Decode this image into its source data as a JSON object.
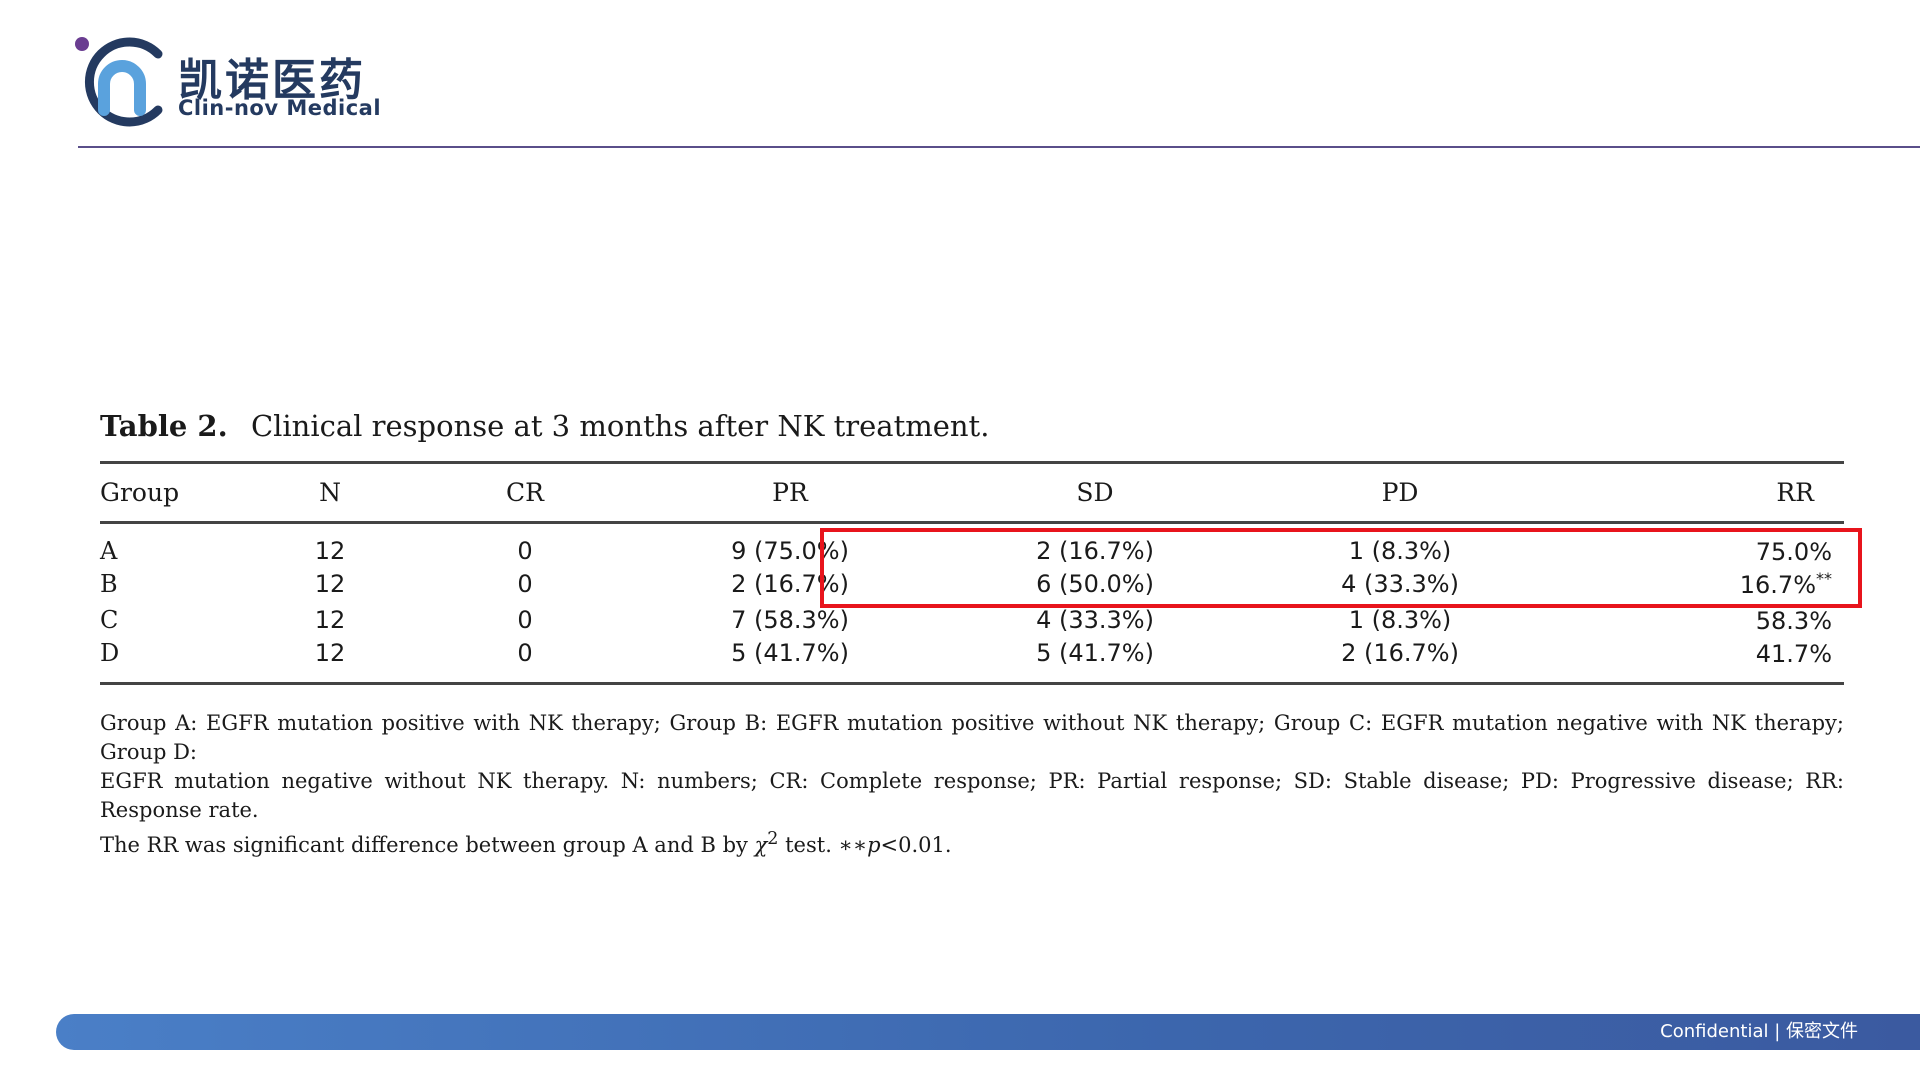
{
  "brand": {
    "name_cn": "凯诺医药",
    "name_en": "Clin-nov Medical",
    "logo_icon": "clin-nov-logo-mark",
    "colors": {
      "navy": "#243a60",
      "light_blue": "#5aa2dd",
      "purple_dot": "#6a3d91",
      "rule": "#5a4f8a"
    }
  },
  "table": {
    "label": "Table 2.",
    "title": "Clinical response at 3 months after NK treatment.",
    "columns": [
      "Group",
      "N",
      "CR",
      "PR",
      "SD",
      "PD",
      "RR"
    ],
    "rows": [
      {
        "group": "A",
        "n": "12",
        "cr": "0",
        "pr": "9 (75.0%)",
        "sd": "2 (16.7%)",
        "pd": "1 (8.3%)",
        "rr": "75.0%",
        "rr_mark": ""
      },
      {
        "group": "B",
        "n": "12",
        "cr": "0",
        "pr": "2 (16.7%)",
        "sd": "6 (50.0%)",
        "pd": "4 (33.3%)",
        "rr": "16.7%",
        "rr_mark": "**"
      },
      {
        "group": "C",
        "n": "12",
        "cr": "0",
        "pr": "7 (58.3%)",
        "sd": "4 (33.3%)",
        "pd": "1 (8.3%)",
        "rr": "58.3%",
        "rr_mark": ""
      },
      {
        "group": "D",
        "n": "12",
        "cr": "0",
        "pr": "5 (41.7%)",
        "sd": "5 (41.7%)",
        "pd": "2 (16.7%)",
        "rr": "41.7%",
        "rr_mark": ""
      }
    ],
    "highlight": {
      "rows": [
        "A",
        "B"
      ],
      "columns": [
        "PR",
        "SD",
        "PD",
        "RR"
      ],
      "color": "#e8141c"
    },
    "note": {
      "line1": "Group A: EGFR mutation positive with NK therapy; Group B: EGFR mutation positive without NK therapy; Group C: EGFR mutation negative with NK therapy; Group D:",
      "line2": "EGFR mutation negative without NK therapy. N: numbers; CR: Complete response; PR: Partial response; SD: Stable disease; PD: Progressive disease; RR: Response rate.",
      "line3_a": "The RR was significant difference between group A and B by ",
      "line3_chi": "χ",
      "line3_sq": "2",
      "line3_b": " test. ",
      "line3_stars": "∗∗",
      "line3_p": "p",
      "line3_c": "<0.01."
    }
  },
  "footer": {
    "text": "Confidential | 保密文件",
    "bar_color": "#3c66ad"
  }
}
